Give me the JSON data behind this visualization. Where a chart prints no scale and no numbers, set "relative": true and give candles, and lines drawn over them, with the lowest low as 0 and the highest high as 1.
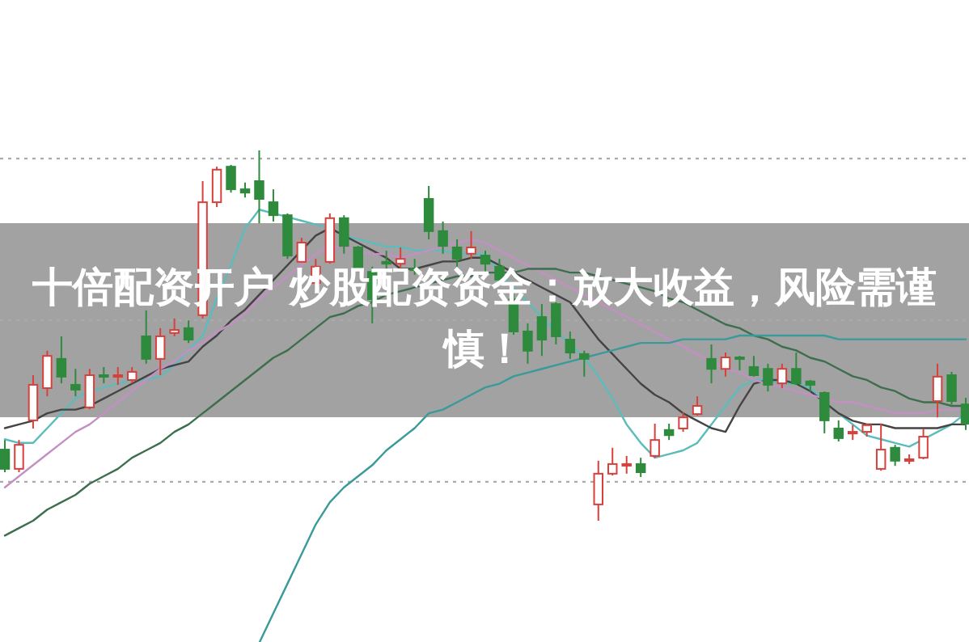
{
  "chart_data": {
    "type": "candlestick",
    "title": "十倍配资开户 炒股配资资金：放大收益，风险需谨慎！",
    "relative": true,
    "categories": [
      null,
      null,
      null,
      null,
      null,
      null,
      null,
      null,
      null,
      null,
      null,
      null,
      null,
      null,
      null,
      null,
      null,
      null,
      null,
      null,
      null,
      null,
      null,
      null,
      null,
      null,
      null,
      null,
      null,
      null,
      null,
      null,
      null,
      null,
      null,
      null,
      null,
      null,
      null,
      null,
      null,
      null,
      null,
      null,
      null,
      null,
      null,
      null,
      null,
      null,
      null,
      null,
      null,
      null,
      null,
      null,
      null,
      null,
      null,
      null,
      null,
      null,
      null,
      null,
      null,
      null,
      null,
      null,
      null
    ],
    "ohlc": [
      [
        0.192,
        0.218,
        0.131,
        0.14
      ],
      [
        0.14,
        0.218,
        0.131,
        0.205
      ],
      [
        0.271,
        0.393,
        0.249,
        0.367
      ],
      [
        0.358,
        0.459,
        0.336,
        0.445
      ],
      [
        0.437,
        0.498,
        0.371,
        0.389
      ],
      [
        0.367,
        0.41,
        0.336,
        0.354
      ],
      [
        0.306,
        0.41,
        0.301,
        0.393
      ],
      [
        0.393,
        0.415,
        0.371,
        0.389
      ],
      [
        0.393,
        0.415,
        0.367,
        0.393
      ],
      [
        0.38,
        0.415,
        0.371,
        0.402
      ],
      [
        0.498,
        0.568,
        0.424,
        0.437
      ],
      [
        0.437,
        0.52,
        0.393,
        0.498
      ],
      [
        0.507,
        0.546,
        0.498,
        0.515
      ],
      [
        0.52,
        0.541,
        0.48,
        0.489
      ],
      [
        0.555,
        0.917,
        0.546,
        0.86
      ],
      [
        0.86,
        0.956,
        0.847,
        0.948
      ],
      [
        0.956,
        0.961,
        0.886,
        0.895
      ],
      [
        0.895,
        0.913,
        0.873,
        0.886
      ],
      [
        0.917,
        1.0,
        0.803,
        0.869
      ],
      [
        0.86,
        0.895,
        0.808,
        0.825
      ],
      [
        0.825,
        0.83,
        0.707,
        0.716
      ],
      [
        0.699,
        0.764,
        0.699,
        0.751
      ],
      [
        0.642,
        0.707,
        0.642,
        0.686
      ],
      [
        0.699,
        0.83,
        0.694,
        0.817
      ],
      [
        0.817,
        0.825,
        0.721,
        0.742
      ],
      [
        0.738,
        0.742,
        0.672,
        0.677
      ],
      [
        0.672,
        0.686,
        0.533,
        0.598
      ],
      [
        0.699,
        0.729,
        0.672,
        0.694
      ],
      [
        0.694,
        0.738,
        0.677,
        0.707
      ],
      [
        0.681,
        0.707,
        0.664,
        0.677
      ],
      [
        0.869,
        0.904,
        0.76,
        0.782
      ],
      [
        0.782,
        0.808,
        0.721,
        0.742
      ],
      [
        0.738,
        0.76,
        0.686,
        0.707
      ],
      [
        0.721,
        0.782,
        0.707,
        0.738
      ],
      [
        0.716,
        0.729,
        0.672,
        0.694
      ],
      [
        0.686,
        0.707,
        0.638,
        0.651
      ],
      [
        0.598,
        0.62,
        0.502,
        0.511
      ],
      [
        0.511,
        0.533,
        0.424,
        0.459
      ],
      [
        0.55,
        0.585,
        0.445,
        0.489
      ],
      [
        0.585,
        0.59,
        0.476,
        0.498
      ],
      [
        0.489,
        0.511,
        0.437,
        0.454
      ],
      [
        0.45,
        0.459,
        0.389,
        0.437
      ],
      [
        0.044,
        0.162,
        0,
        0.127
      ],
      [
        0.127,
        0.197,
        0.122,
        0.153
      ],
      [
        0.153,
        0.175,
        0.127,
        0.153
      ],
      [
        0.153,
        0.17,
        0.118,
        0.131
      ],
      [
        0.175,
        0.262,
        0.17,
        0.218
      ],
      [
        0.245,
        0.262,
        0.218,
        0.231
      ],
      [
        0.249,
        0.293,
        0.24,
        0.279
      ],
      [
        0.288,
        0.336,
        0.284,
        0.31
      ],
      [
        0.437,
        0.476,
        0.371,
        0.41
      ],
      [
        0.41,
        0.454,
        0.389,
        0.441
      ],
      [
        0.441,
        0.445,
        0.406,
        0.437
      ],
      [
        0.415,
        0.445,
        0.389,
        0.393
      ],
      [
        0.41,
        0.424,
        0.349,
        0.367
      ],
      [
        0.371,
        0.424,
        0.358,
        0.41
      ],
      [
        0.41,
        0.454,
        0.367,
        0.371
      ],
      [
        0.376,
        0.38,
        0.349,
        0.367
      ],
      [
        0.345,
        0.349,
        0.236,
        0.271
      ],
      [
        0.249,
        0.271,
        0.214,
        0.223
      ],
      [
        0.24,
        0.258,
        0.218,
        0.24
      ],
      [
        0.24,
        0.262,
        0.227,
        0.258
      ],
      [
        0.14,
        0.262,
        0.135,
        0.192
      ],
      [
        0.197,
        0.205,
        0.148,
        0.162
      ],
      [
        0.166,
        0.179,
        0.153,
        0.166
      ],
      [
        0.17,
        0.249,
        0.166,
        0.227
      ],
      [
        0.323,
        0.424,
        0.279,
        0.389
      ],
      [
        0.393,
        0.402,
        0.314,
        0.323
      ],
      [
        0.314,
        0.332,
        0.245,
        0.262
      ]
    ],
    "series": [
      {
        "type": "line",
        "color": "#5cbcbc",
        "values": [
          0.22,
          0.21,
          0.21,
          0.25,
          0.29,
          0.33,
          0.35,
          0.36,
          0.37,
          0.38,
          0.38,
          0.39,
          0.42,
          0.46,
          0.5,
          0.6,
          0.69,
          0.79,
          0.84,
          0.83,
          0.82,
          0.81,
          0.8,
          0.79,
          0.77,
          0.76,
          0.75,
          0.74,
          0.74,
          0.73,
          0.73,
          0.73,
          0.72,
          0.72,
          0.72,
          0.67,
          0.63,
          0.59,
          0.55,
          0.51,
          0.48,
          0.44,
          0.39,
          0.33,
          0.26,
          0.21,
          0.17,
          0.18,
          0.19,
          0.21,
          0.26,
          0.31,
          0.36,
          0.38,
          0.38,
          0.37,
          0.37,
          0.36,
          0.32,
          0.29,
          0.26,
          0.23,
          0.22,
          0.21,
          0.2,
          0.22,
          0.24,
          0.26,
          0.29
        ]
      },
      {
        "type": "line",
        "color": "#444444",
        "values": [
          0.25,
          0.26,
          0.27,
          0.29,
          0.3,
          0.3,
          0.31,
          0.33,
          0.35,
          0.37,
          0.39,
          0.41,
          0.42,
          0.43,
          0.47,
          0.5,
          0.54,
          0.57,
          0.61,
          0.65,
          0.69,
          0.73,
          0.77,
          0.79,
          0.77,
          0.75,
          0.73,
          0.71,
          0.68,
          0.68,
          0.69,
          0.7,
          0.7,
          0.71,
          0.71,
          0.69,
          0.67,
          0.65,
          0.63,
          0.61,
          0.59,
          0.54,
          0.49,
          0.45,
          0.41,
          0.37,
          0.34,
          0.32,
          0.29,
          0.27,
          0.25,
          0.24,
          0.31,
          0.37,
          0.38,
          0.38,
          0.37,
          0.35,
          0.32,
          0.29,
          0.27,
          0.26,
          0.26,
          0.25,
          0.25,
          0.25,
          0.25,
          0.26,
          0.26
        ]
      },
      {
        "type": "line",
        "color": "#c490c4",
        "values": [
          0.09,
          0.12,
          0.15,
          0.18,
          0.21,
          0.24,
          0.26,
          0.29,
          0.32,
          0.35,
          0.38,
          0.41,
          0.43,
          0.46,
          0.48,
          0.51,
          0.53,
          0.56,
          0.6,
          0.63,
          0.66,
          0.69,
          0.72,
          0.74,
          0.74,
          0.73,
          0.72,
          0.72,
          0.71,
          0.72,
          0.73,
          0.74,
          0.75,
          0.76,
          0.75,
          0.73,
          0.71,
          0.69,
          0.67,
          0.65,
          0.63,
          0.61,
          0.59,
          0.57,
          0.55,
          0.53,
          0.51,
          0.49,
          0.47,
          0.45,
          0.43,
          0.41,
          0.4,
          0.38,
          0.37,
          0.36,
          0.35,
          0.34,
          0.33,
          0.32,
          0.32,
          0.31,
          0.3,
          0.29,
          0.29,
          0.29,
          0.3,
          0.3,
          0.3
        ]
      },
      {
        "type": "line",
        "color": "#3d6e4e",
        "values": [
          -0.04,
          -0.02,
          0.0,
          0.03,
          0.05,
          0.07,
          0.1,
          0.12,
          0.14,
          0.17,
          0.19,
          0.21,
          0.24,
          0.26,
          0.29,
          0.32,
          0.35,
          0.38,
          0.41,
          0.44,
          0.46,
          0.49,
          0.52,
          0.55,
          0.56,
          0.58,
          0.59,
          0.61,
          0.62,
          0.63,
          0.64,
          0.65,
          0.66,
          0.66,
          0.67,
          0.67,
          0.67,
          0.68,
          0.68,
          0.68,
          0.67,
          0.67,
          0.66,
          0.65,
          0.64,
          0.63,
          0.62,
          0.6,
          0.59,
          0.57,
          0.55,
          0.53,
          0.52,
          0.5,
          0.49,
          0.47,
          0.46,
          0.44,
          0.43,
          0.41,
          0.39,
          0.38,
          0.36,
          0.35,
          0.33,
          0.32,
          0.32,
          0.31,
          0.31
        ]
      },
      {
        "type": "line",
        "color": "#3a9a9a",
        "values": [
          null,
          null,
          null,
          null,
          null,
          null,
          null,
          null,
          null,
          null,
          null,
          null,
          null,
          null,
          null,
          null,
          null,
          null,
          -0.33,
          -0.25,
          -0.17,
          -0.09,
          -0.01,
          0.05,
          0.09,
          0.12,
          0.15,
          0.19,
          0.22,
          0.25,
          0.29,
          0.3,
          0.32,
          0.34,
          0.36,
          0.37,
          0.39,
          0.4,
          0.41,
          0.42,
          0.43,
          0.44,
          0.45,
          0.46,
          0.47,
          0.48,
          0.48,
          0.48,
          0.49,
          0.49,
          0.49,
          0.49,
          0.5,
          0.5,
          0.5,
          0.5,
          0.5,
          0.5,
          0.5,
          0.49,
          0.49,
          0.49,
          0.49,
          0.49,
          0.49,
          0.49,
          0.49,
          0.49,
          0.49
        ]
      }
    ],
    "ref_lines": [
      {
        "axis": "y",
        "value": 0.978,
        "color": "#aaaaaa",
        "line_style": "dotted"
      },
      {
        "axis": "y",
        "value": 0.541,
        "color": "#aaaaaa",
        "line_style": "dotted"
      },
      {
        "axis": "y",
        "value": 0.105,
        "color": "#aaaaaa",
        "line_style": "dotted"
      }
    ]
  }
}
